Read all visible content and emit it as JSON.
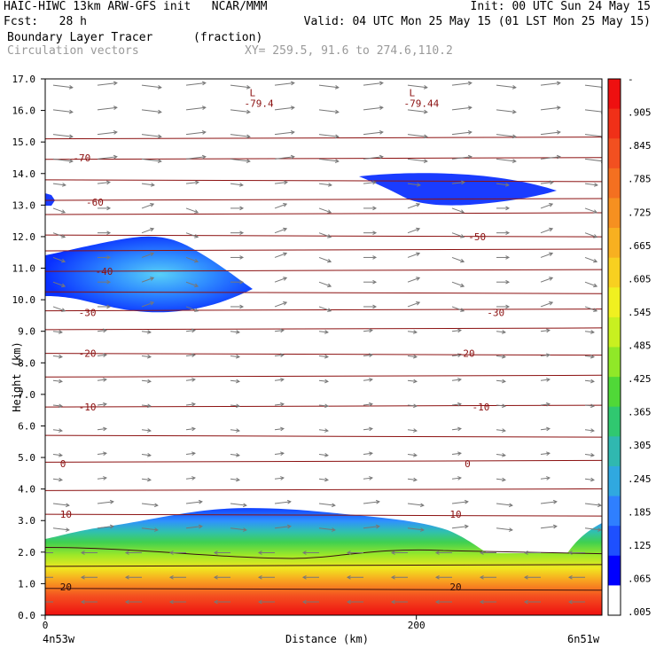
{
  "header": {
    "line1_left": "HAIC-HIWC 13km ARW-GFS init   NCAR/MMM",
    "line1_right": "Init: 00 UTC Sun 24 May 15",
    "line2_left": "Fcst:   28 h",
    "line2_right": "Valid: 04 UTC Mon 25 May 15 (01 LST Mon 25 May 15)",
    "field_name": "Boundary Layer Tracer",
    "field_units": "(fraction)",
    "vector_label": "Circulation vectors",
    "xy_label": "XY= 259.5, 91.6 to 274.6,110.2"
  },
  "chart_data": {
    "type": "heatmap",
    "title": "Boundary Layer Tracer",
    "units": "(fraction)",
    "ylabel": "Height (km)",
    "xlabel": "Distance (km)",
    "x_start_label": "4n53w",
    "x_end_label": "6n51w",
    "xlim": [
      0,
      300
    ],
    "ylim": [
      0.0,
      17.0
    ],
    "x_ticks": [
      0,
      200
    ],
    "y_ticks": [
      "0.0",
      "1.0",
      "2.0",
      "3.0",
      "4.0",
      "5.0",
      "6.0",
      "7.0",
      "8.0",
      "9.0",
      "10.0",
      "11.0",
      "12.0",
      "13.0",
      "14.0",
      "15.0",
      "16.0",
      "17.0"
    ],
    "colorbar": {
      "labels": [
        "-",
        ".905",
        ".845",
        ".785",
        ".725",
        ".665",
        ".605",
        ".545",
        ".485",
        ".425",
        ".365",
        ".305",
        ".245",
        ".185",
        ".125",
        ".065",
        ".005"
      ],
      "colors": [
        "#ee1010",
        "#f03018",
        "#f25020",
        "#f47020",
        "#f69020",
        "#f8b020",
        "#f8d020",
        "#f0f020",
        "#c8f020",
        "#90e828",
        "#50d838",
        "#30c870",
        "#30b8b0",
        "#30a8e0",
        "#2f7fff",
        "#1e50ff",
        "#0000ff",
        "#ffffff"
      ]
    },
    "temperature_contours": {
      "labels": [
        {
          "value": "-70",
          "x": 15,
          "y": 14.5
        },
        {
          "value": "-60",
          "x": 22,
          "y": 13.1
        },
        {
          "value": "-50",
          "x": 228,
          "y": 12.0
        },
        {
          "value": "-40",
          "x": 27,
          "y": 10.9
        },
        {
          "value": "-30",
          "x": 18,
          "y": 9.6
        },
        {
          "value": "-30",
          "x": 238,
          "y": 9.6
        },
        {
          "value": "-20",
          "x": 18,
          "y": 8.3
        },
        {
          "value": "-20",
          "x": 222,
          "y": 8.3
        },
        {
          "value": "-10",
          "x": 18,
          "y": 6.6
        },
        {
          "value": "-10",
          "x": 230,
          "y": 6.6
        },
        {
          "value": "0",
          "x": 8,
          "y": 4.8
        },
        {
          "value": "0",
          "x": 226,
          "y": 4.8
        },
        {
          "value": "10",
          "x": 8,
          "y": 3.2
        },
        {
          "value": "10",
          "x": 218,
          "y": 3.2
        },
        {
          "value": "20",
          "x": 8,
          "y": 0.9
        },
        {
          "value": "20",
          "x": 218,
          "y": 0.9
        }
      ],
      "lows": [
        {
          "mark": "L",
          "value": "-79.4",
          "x": 112,
          "y": 16.4
        },
        {
          "mark": "L",
          "value": "-79.44",
          "x": 198,
          "y": 16.4
        }
      ]
    },
    "tracer_regions": [
      {
        "name": "boundary layer",
        "fraction_max": 0.95,
        "top_km": 3.3
      },
      {
        "name": "upper cloud west",
        "fraction_max": 0.2,
        "top_km": 12.0,
        "bottom_km": 9.6
      },
      {
        "name": "upper cloud east",
        "fraction_max": 0.1,
        "top_km": 14.0,
        "bottom_km": 13.0
      }
    ],
    "grid": false
  },
  "colors": {
    "contour": "#8b1010",
    "vector": "#777777",
    "axis": "#000000"
  }
}
